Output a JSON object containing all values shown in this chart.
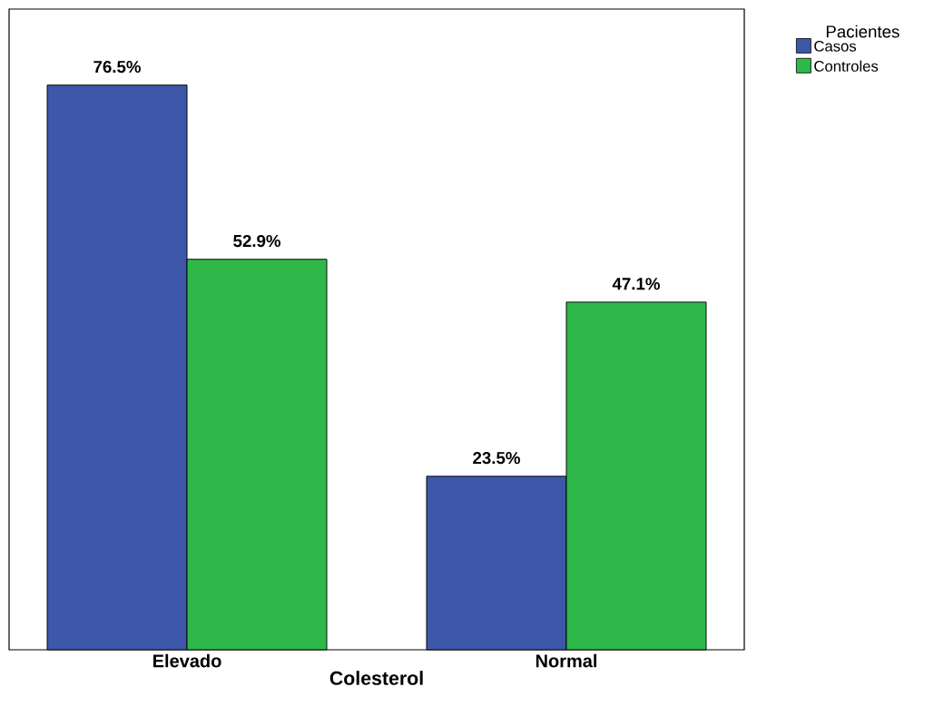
{
  "chart_data": {
    "type": "bar",
    "xlabel": "Colesterol",
    "legend_title": "Pacientes",
    "categories": [
      "Elevado",
      "Normal"
    ],
    "series": [
      {
        "name": "Casos",
        "color": "#3d58a8",
        "values": [
          76.5,
          23.5
        ],
        "value_labels": [
          "76.5%",
          "23.5%"
        ]
      },
      {
        "name": "Controles",
        "color": "#2eb84a",
        "values": [
          52.9,
          47.1
        ],
        "value_labels": [
          "52.9%",
          "47.1%"
        ]
      }
    ],
    "ylim": [
      0,
      86.8
    ],
    "legend": "top right",
    "grid": false
  }
}
